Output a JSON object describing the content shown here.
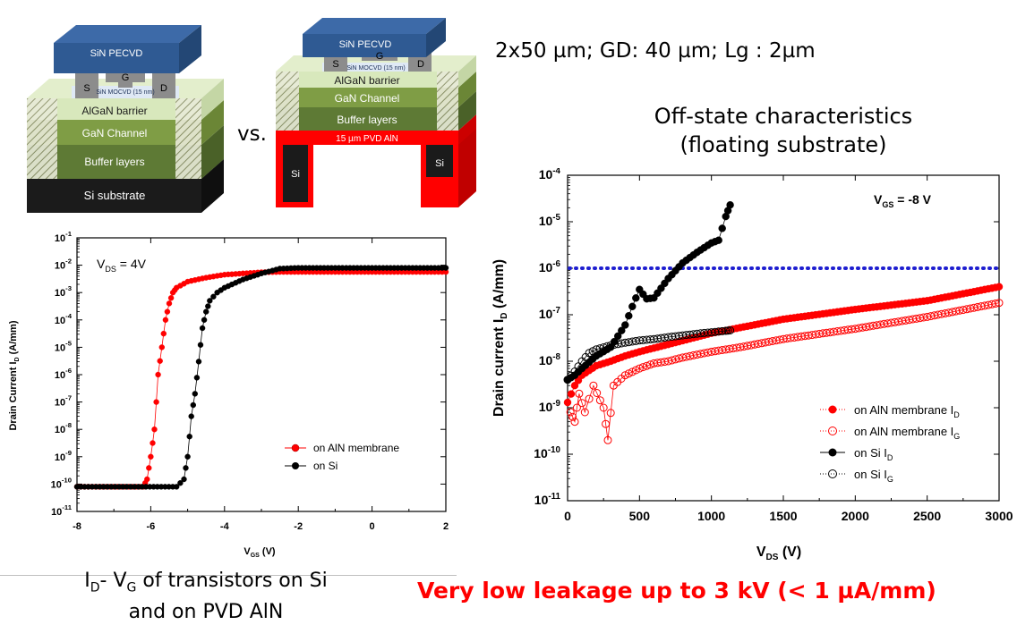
{
  "slide": {
    "spec_text": "2x50 µm; GD: 40 µm; Lg : 2µm",
    "offstate_title_line1": "Off-state characteristics",
    "offstate_title_line2": "(floating substrate)",
    "vs_text": "vs.",
    "caption_line1_a": "I",
    "caption_line1_sub_d": "D",
    "caption_line1_b": "- V",
    "caption_line1_sub_g": "G",
    "caption_line1_c": " of transistors on Si",
    "caption_line2": "and on PVD AlN",
    "claim": "Very low leakage up to 3 kV (< 1 µA/mm)"
  },
  "diagram_left": {
    "layers": [
      "SiN PECVD",
      "SiN MOCVD (15 nm)",
      "AlGaN barrier",
      "GaN Channel",
      "Buffer layers",
      "Si substrate"
    ],
    "contacts": [
      "S",
      "G",
      "D"
    ]
  },
  "diagram_right": {
    "layers": [
      "SiN PECVD",
      "SiN MOCVD (15 nm)",
      "AlGaN barrier",
      "GaN Channel",
      "Buffer layers",
      "15 µm PVD AlN"
    ],
    "contacts": [
      "S",
      "G",
      "D"
    ],
    "side_labels": [
      "Si",
      "Si"
    ]
  },
  "colors": {
    "red": "#ff0000",
    "black": "#000000",
    "blue_dotted": "#1f1fd0",
    "sin_blue": "#2f5a93",
    "algan": "#d8e8bc",
    "gan": "#7f9d45",
    "buffer": "#5e7a35",
    "substrate": "#1b1b1b",
    "contact_gray": "#8c8c8c"
  },
  "chart_data": [
    {
      "type": "scatter",
      "title": "",
      "annotation": "V_DS = 4V",
      "annotation_main": "V",
      "annotation_sub": "DS",
      "annotation_rest": " = 4V",
      "xlabel_main": "V",
      "xlabel_sub": "GS",
      "xlabel_rest": " (V)",
      "ylabel_main": "Drain Current I",
      "ylabel_sub": "D",
      "ylabel_rest": " (A/mm)",
      "xlim": [
        -8,
        2
      ],
      "ylim": [
        1e-11,
        0.1
      ],
      "yscale": "log",
      "xticks": [
        "-8",
        "-6",
        "-4",
        "-2",
        "0",
        "2"
      ],
      "yticks": [
        "10-11",
        "10-10",
        "10-9",
        "10-8",
        "10-7",
        "10-6",
        "10-5",
        "10-4",
        "10-3",
        "10-2",
        "10-1"
      ],
      "legend_position": "lower-right",
      "series": [
        {
          "name": "on AlN membrane",
          "color": "#ff0000",
          "marker": "filled-circle",
          "x": [
            -8,
            -6.2,
            -6.1,
            -6.0,
            -5.9,
            -5.8,
            -5.7,
            -5.6,
            -5.5,
            -5.4,
            -5.3,
            -5.0,
            -4.5,
            -4.0,
            -3.5,
            -3.0,
            -2.5,
            -2.0,
            -1.0,
            0,
            1.0,
            2.0
          ],
          "y": [
            8e-11,
            8e-11,
            1.5e-10,
            1e-09,
            1e-08,
            1e-06,
            1e-05,
            0.0001,
            0.0004,
            0.001,
            0.0015,
            0.0025,
            0.0035,
            0.0045,
            0.005,
            0.0055,
            0.0057,
            0.0057,
            0.0057,
            0.0057,
            0.0057,
            0.0057
          ]
        },
        {
          "name": "on Si",
          "color": "#000000",
          "marker": "filled-circle",
          "x": [
            -8,
            -5.3,
            -5.1,
            -5.0,
            -4.9,
            -4.8,
            -4.7,
            -4.6,
            -4.5,
            -4.4,
            -4.2,
            -4.0,
            -3.5,
            -3.0,
            -2.5,
            -2.0,
            -1.0,
            0,
            1.0,
            2.0
          ],
          "y": [
            8e-11,
            8e-11,
            1.5e-10,
            1e-09,
            3e-08,
            2e-07,
            3e-06,
            5e-05,
            0.0002,
            0.0005,
            0.001,
            0.0015,
            0.003,
            0.005,
            0.0075,
            0.008,
            0.008,
            0.008,
            0.008,
            0.008
          ]
        }
      ]
    },
    {
      "type": "scatter",
      "title": "",
      "annotation_main": "V",
      "annotation_sub": "GS",
      "annotation_rest": " = -8 V",
      "xlabel_main": "V",
      "xlabel_sub": "DS",
      "xlabel_rest": " (V)",
      "ylabel_main": "Drain current I",
      "ylabel_sub": "D",
      "ylabel_rest": " (A/mm)",
      "xlim": [
        0,
        3000
      ],
      "ylim": [
        1e-11,
        0.0001
      ],
      "yscale": "log",
      "xticks": [
        "0",
        "500",
        "1000",
        "1500",
        "2000",
        "2500",
        "3000"
      ],
      "yticks": [
        "10-11",
        "10-10",
        "10-9",
        "10-8",
        "10-7",
        "10-6",
        "10-5",
        "10-4"
      ],
      "reference_line": {
        "y": 1e-06,
        "style": "dotted",
        "color": "#1f1fd0"
      },
      "legend_position": "lower-right",
      "series": [
        {
          "name": "on AlN membrane I_D",
          "name_main": "on AlN membrane I",
          "name_sub": "D",
          "color": "#ff0000",
          "marker": "filled-circle",
          "x": [
            0,
            50,
            100,
            200,
            300,
            400,
            500,
            700,
            1000,
            1500,
            2000,
            2500,
            3000
          ],
          "y": [
            1.3e-09,
            3e-09,
            5e-09,
            8e-09,
            1e-08,
            1.3e-08,
            1.6e-08,
            2.3e-08,
            4e-08,
            8e-08,
            1.3e-07,
            2e-07,
            4e-07
          ]
        },
        {
          "name": "on AlN membrane I_G",
          "name_main": "on AlN membrane I",
          "name_sub": "G",
          "color": "#ff0000",
          "marker": "open-circle",
          "x": [
            20,
            50,
            80,
            120,
            180,
            250,
            280,
            320,
            400,
            500,
            600,
            700,
            800,
            1000,
            1200,
            1500,
            2000,
            2500,
            3000
          ],
          "y": [
            8e-10,
            5e-10,
            2e-09,
            8e-10,
            3e-09,
            1e-09,
            2e-10,
            3e-09,
            5e-09,
            7e-09,
            9e-09,
            1e-08,
            1.2e-08,
            1.6e-08,
            2e-08,
            3e-08,
            5e-08,
            9e-08,
            1.8e-07
          ]
        },
        {
          "name": "on Si I_D",
          "name_main": "on Si I",
          "name_sub": "D",
          "color": "#000000",
          "marker": "filled-circle",
          "x": [
            0,
            50,
            100,
            200,
            300,
            400,
            450,
            500,
            550,
            600,
            700,
            800,
            900,
            1000,
            1050,
            1100,
            1130
          ],
          "y": [
            4e-09,
            5e-09,
            7e-09,
            1.3e-08,
            2e-08,
            6e-08,
            1.5e-07,
            3.5e-07,
            2.2e-07,
            2.3e-07,
            6e-07,
            1.3e-06,
            2.2e-06,
            3.5e-06,
            4e-06,
            1.3e-05,
            2.3e-05
          ]
        },
        {
          "name": "on Si I_G",
          "name_main": "on Si I",
          "name_sub": "G",
          "color": "#000000",
          "marker": "open-circle",
          "x": [
            0,
            50,
            100,
            150,
            200,
            300,
            400,
            500,
            600,
            700,
            800,
            900,
            1000,
            1100,
            1130
          ],
          "y": [
            4e-09,
            6e-09,
            1e-08,
            1.5e-08,
            1.8e-08,
            2.2e-08,
            2.5e-08,
            2.8e-08,
            3e-08,
            3.3e-08,
            3.6e-08,
            3.9e-08,
            4.2e-08,
            4.5e-08,
            4.6e-08
          ]
        }
      ]
    }
  ]
}
